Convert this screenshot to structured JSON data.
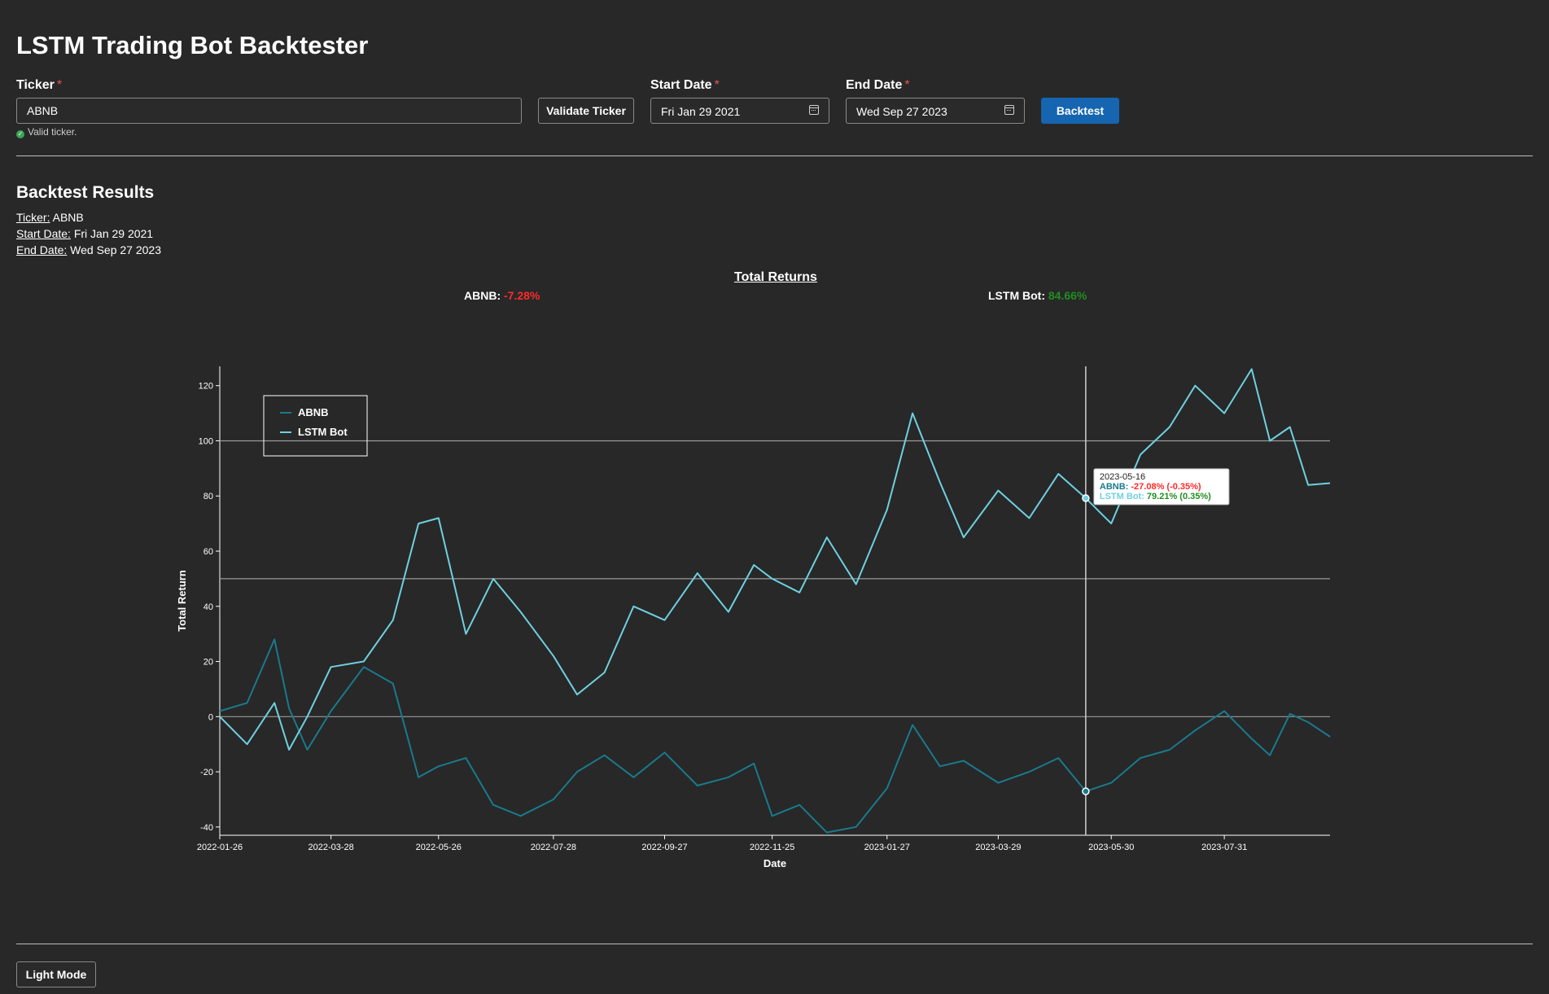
{
  "app": {
    "title": "LSTM Trading Bot Backtester"
  },
  "form": {
    "ticker_label": "Ticker",
    "required_mark": "*",
    "ticker_value": "ABNB",
    "validate_label": "Validate Ticker",
    "valid_message": "Valid ticker.",
    "start_label": "Start Date",
    "start_value": "Fri Jan 29 2021",
    "end_label": "End Date",
    "end_value": "Wed Sep 27 2023",
    "backtest_label": "Backtest"
  },
  "results": {
    "title": "Backtest Results",
    "ticker_key": "Ticker:",
    "ticker_value": "ABNB",
    "start_key": "Start Date:",
    "start_value": "Fri Jan 29 2021",
    "end_key": "End Date:",
    "end_value": "Wed Sep 27 2023",
    "returns_title": "Total Returns",
    "abnb_key": "ABNB:",
    "abnb_value": "-7.28%",
    "bot_key": "LSTM Bot:",
    "bot_value": "84.66%"
  },
  "theme_button": "Light Mode",
  "colors": {
    "abnb": "#1a7a8c",
    "bot": "#6fd0e0",
    "negative": "#ff2a2a",
    "positive": "#1f8f1f",
    "accent": "#1565b0"
  },
  "icons": {
    "calendar": "calendar-icon",
    "check": "check-circle-icon"
  },
  "chart_data": {
    "type": "line",
    "xlabel": "Date",
    "ylabel": "Total Return",
    "xlim": [
      "2022-01-26",
      "2023-09-27"
    ],
    "ylim": [
      -43,
      127
    ],
    "x_ticks": [
      "2022-01-26",
      "2022-03-28",
      "2022-05-26",
      "2022-07-28",
      "2022-09-27",
      "2022-11-25",
      "2023-01-27",
      "2023-03-29",
      "2023-05-30",
      "2023-07-31"
    ],
    "y_ticks": [
      -40,
      -20,
      0,
      20,
      40,
      60,
      80,
      100,
      120
    ],
    "reference_lines": [
      0,
      50,
      100
    ],
    "legend": {
      "placement": "top-left",
      "entries": [
        "ABNB",
        "LSTM Bot"
      ]
    },
    "series": [
      {
        "name": "ABNB",
        "color": "#1a7a8c",
        "x": [
          "2022-01-26",
          "2022-02-10",
          "2022-02-25",
          "2022-03-05",
          "2022-03-15",
          "2022-03-28",
          "2022-04-15",
          "2022-05-01",
          "2022-05-15",
          "2022-05-26",
          "2022-06-10",
          "2022-06-25",
          "2022-07-10",
          "2022-07-28",
          "2022-08-10",
          "2022-08-25",
          "2022-09-10",
          "2022-09-27",
          "2022-10-15",
          "2022-11-01",
          "2022-11-15",
          "2022-11-25",
          "2022-12-10",
          "2022-12-25",
          "2023-01-10",
          "2023-01-27",
          "2023-02-10",
          "2023-02-25",
          "2023-03-10",
          "2023-03-29",
          "2023-04-15",
          "2023-05-01",
          "2023-05-16",
          "2023-05-30",
          "2023-06-15",
          "2023-07-01",
          "2023-07-15",
          "2023-07-31",
          "2023-08-15",
          "2023-08-25",
          "2023-09-05",
          "2023-09-15",
          "2023-09-27"
        ],
        "values": [
          2,
          5,
          28,
          3,
          -12,
          2,
          18,
          12,
          -22,
          -18,
          -15,
          -32,
          -36,
          -30,
          -20,
          -14,
          -22,
          -13,
          -25,
          -22,
          -17,
          -36,
          -32,
          -42,
          -40,
          -26,
          -3,
          -18,
          -16,
          -24,
          -20,
          -15,
          -27.08,
          -24,
          -15,
          -12,
          -5,
          2,
          -8,
          -14,
          1,
          -2,
          -7.28
        ]
      },
      {
        "name": "LSTM Bot",
        "color": "#6fd0e0",
        "x": [
          "2022-01-26",
          "2022-02-10",
          "2022-02-25",
          "2022-03-05",
          "2022-03-15",
          "2022-03-28",
          "2022-04-15",
          "2022-05-01",
          "2022-05-15",
          "2022-05-26",
          "2022-06-10",
          "2022-06-25",
          "2022-07-10",
          "2022-07-28",
          "2022-08-10",
          "2022-08-25",
          "2022-09-10",
          "2022-09-27",
          "2022-10-15",
          "2022-11-01",
          "2022-11-15",
          "2022-11-25",
          "2022-12-10",
          "2022-12-25",
          "2023-01-10",
          "2023-01-27",
          "2023-02-10",
          "2023-02-25",
          "2023-03-10",
          "2023-03-29",
          "2023-04-15",
          "2023-05-01",
          "2023-05-16",
          "2023-05-30",
          "2023-06-15",
          "2023-07-01",
          "2023-07-15",
          "2023-07-31",
          "2023-08-15",
          "2023-08-25",
          "2023-09-05",
          "2023-09-15",
          "2023-09-27"
        ],
        "values": [
          0,
          -10,
          5,
          -12,
          0,
          18,
          20,
          35,
          70,
          72,
          30,
          50,
          38,
          22,
          8,
          16,
          40,
          35,
          52,
          38,
          55,
          50,
          45,
          65,
          48,
          75,
          110,
          85,
          65,
          82,
          72,
          88,
          79.21,
          70,
          95,
          105,
          120,
          110,
          126,
          100,
          105,
          84,
          84.66
        ]
      }
    ],
    "tooltip": {
      "date": "2023-05-16",
      "abnb_label": "ABNB:",
      "abnb_value": "-27.08% (-0.35%)",
      "bot_label": "LSTM Bot:",
      "bot_value": "79.21% (0.35%)"
    }
  }
}
